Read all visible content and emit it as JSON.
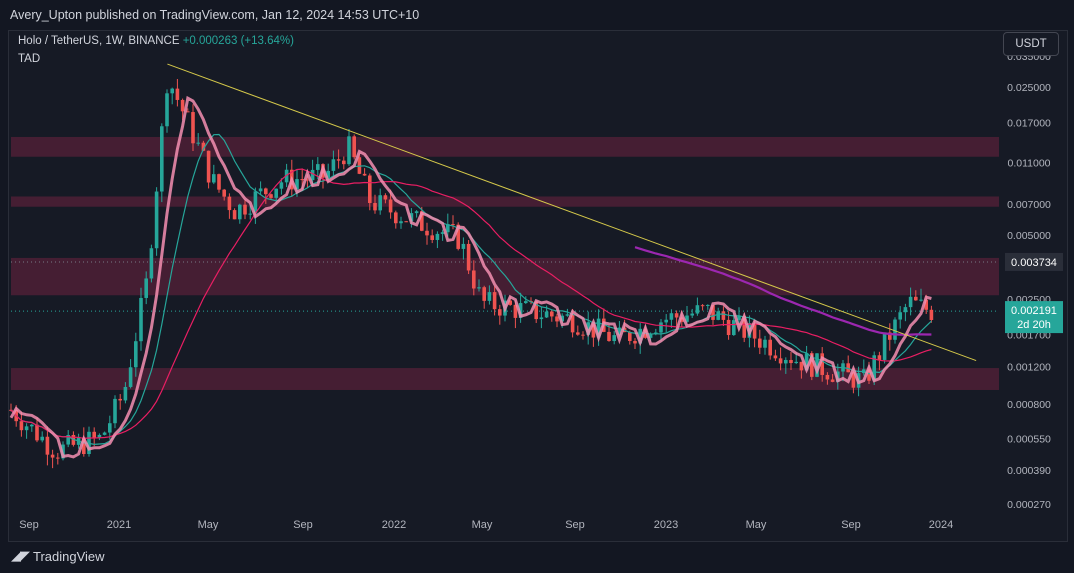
{
  "header": {
    "published_by": "Avery_Upton published on TradingView.com, Jan 12, 2024 14:53 UTC+10"
  },
  "symbol": {
    "pair": "Holo / TetherUS, 1W, BINANCE",
    "change": "+0.000263 (+13.64%)",
    "indicator": "TAD"
  },
  "currency_button": "USDT",
  "footer": {
    "brand": "TradingView",
    "logo_icon": "tradingview-logo-icon"
  },
  "colors": {
    "background": "#161a25",
    "up_candle": "#26a69a",
    "down_candle": "#ef5350",
    "zone": "#4a1f35",
    "trendline": "#d4c84a",
    "long_ma": "#9c27b0",
    "mid_ma": "#e91e63",
    "short_ma": "#26a69a",
    "trail_bear": "#f48fb1",
    "trail_bull": "#e0f2f1"
  },
  "chart_data": {
    "type": "candlestick",
    "title": "Holo / TetherUS, 1W, BINANCE",
    "price_scale": "log",
    "y_ticks": [
      "0.035000",
      "0.025000",
      "0.017000",
      "0.011000",
      "0.007000",
      "0.005000",
      "0.003734",
      "0.002500",
      "0.001700",
      "0.001200",
      "0.000800",
      "0.000550",
      "0.000390",
      "0.000270"
    ],
    "x_ticks": [
      "Sep",
      "2021",
      "May",
      "Sep",
      "2022",
      "May",
      "Sep",
      "2023",
      "May",
      "Sep",
      "2024"
    ],
    "current_price_label": "0.002191",
    "countdown_label": "2d 20h",
    "reference_price": 0.003734,
    "resistance_zones": [
      {
        "from": 0.0117,
        "to": 0.0145
      },
      {
        "from": 0.0068,
        "to": 0.0076
      },
      {
        "from": 0.0026,
        "to": 0.0039
      },
      {
        "from": 0.00093,
        "to": 0.00118
      }
    ],
    "trendline": {
      "start": [
        "2021-03",
        0.032
      ],
      "end": [
        "2024-03",
        0.00128
      ]
    },
    "approx_ohlc_path": [
      [
        "2020-08",
        0.00075
      ],
      [
        "2020-10",
        0.00048
      ],
      [
        "2020-12",
        0.00055
      ],
      [
        "2021-01",
        0.0009
      ],
      [
        "2021-02",
        0.003
      ],
      [
        "2021-03",
        0.028
      ],
      [
        "2021-04",
        0.016
      ],
      [
        "2021-05",
        0.009
      ],
      [
        "2021-06",
        0.0065
      ],
      [
        "2021-08",
        0.009
      ],
      [
        "2021-10",
        0.0095
      ],
      [
        "2021-11",
        0.013
      ],
      [
        "2021-12",
        0.0072
      ],
      [
        "2022-02",
        0.0058
      ],
      [
        "2022-04",
        0.0048
      ],
      [
        "2022-05",
        0.0024
      ],
      [
        "2022-07",
        0.0022
      ],
      [
        "2022-09",
        0.002
      ],
      [
        "2022-11",
        0.0016
      ],
      [
        "2023-01",
        0.002
      ],
      [
        "2023-03",
        0.0022
      ],
      [
        "2023-05",
        0.0017
      ],
      [
        "2023-07",
        0.0013
      ],
      [
        "2023-09",
        0.0011
      ],
      [
        "2023-10",
        0.00102
      ],
      [
        "2023-11",
        0.0016
      ],
      [
        "2023-12",
        0.0024
      ],
      [
        "2024-01",
        0.00219
      ]
    ]
  }
}
